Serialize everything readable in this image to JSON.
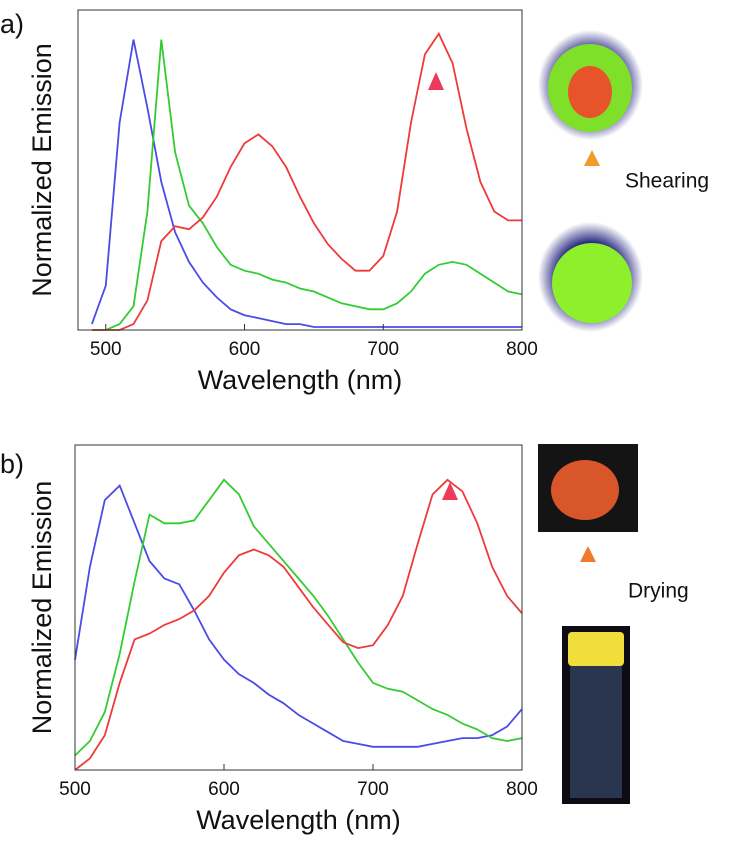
{
  "chart_data": [
    {
      "type": "line",
      "panel_label": "a)",
      "xlabel": "Wavelength (nm)",
      "ylabel": "Normalized Emission",
      "annotation": "Shearing",
      "xlim": [
        480,
        800
      ],
      "ylim": [
        0,
        1.08
      ],
      "xticks": [
        500,
        600,
        700,
        800
      ],
      "x": [
        490,
        500,
        510,
        520,
        530,
        540,
        550,
        560,
        570,
        580,
        590,
        600,
        610,
        620,
        630,
        640,
        650,
        660,
        670,
        680,
        690,
        700,
        710,
        720,
        730,
        740,
        750,
        760,
        770,
        780,
        790,
        800
      ],
      "series": [
        {
          "color": "#4b4be8",
          "values": [
            0.02,
            0.15,
            0.7,
            0.98,
            0.75,
            0.5,
            0.33,
            0.23,
            0.16,
            0.11,
            0.07,
            0.05,
            0.04,
            0.03,
            0.02,
            0.02,
            0.01,
            0.01,
            0.01,
            0.01,
            0.01,
            0.01,
            0.01,
            0.01,
            0.01,
            0.01,
            0.01,
            0.01,
            0.01,
            0.01,
            0.01,
            0.01
          ]
        },
        {
          "color": "#33cc33",
          "values": [
            0,
            0,
            0.02,
            0.08,
            0.4,
            0.98,
            0.6,
            0.42,
            0.36,
            0.28,
            0.22,
            0.2,
            0.19,
            0.17,
            0.16,
            0.14,
            0.13,
            0.11,
            0.09,
            0.08,
            0.07,
            0.07,
            0.09,
            0.13,
            0.19,
            0.22,
            0.23,
            0.22,
            0.19,
            0.16,
            0.13,
            0.12
          ]
        },
        {
          "color": "#ee3a3a",
          "values": [
            0,
            0,
            0,
            0.02,
            0.1,
            0.3,
            0.35,
            0.34,
            0.38,
            0.45,
            0.55,
            0.63,
            0.66,
            0.62,
            0.55,
            0.45,
            0.36,
            0.29,
            0.24,
            0.2,
            0.2,
            0.25,
            0.4,
            0.7,
            0.93,
            1.0,
            0.9,
            0.68,
            0.5,
            0.4,
            0.37,
            0.37
          ]
        }
      ]
    },
    {
      "type": "line",
      "panel_label": "b)",
      "xlabel": "Wavelength (nm)",
      "ylabel": "Normalized Emission",
      "annotation": "Drying",
      "xlim": [
        500,
        800
      ],
      "ylim": [
        0,
        1.12
      ],
      "xticks": [
        500,
        600,
        700,
        800
      ],
      "x": [
        500,
        510,
        520,
        530,
        540,
        550,
        560,
        570,
        580,
        590,
        600,
        610,
        620,
        630,
        640,
        650,
        660,
        670,
        680,
        690,
        700,
        710,
        720,
        730,
        740,
        750,
        760,
        770,
        780,
        790,
        800
      ],
      "series": [
        {
          "color": "#4b4be8",
          "values": [
            0.38,
            0.7,
            0.93,
            0.98,
            0.85,
            0.72,
            0.66,
            0.64,
            0.55,
            0.45,
            0.38,
            0.33,
            0.3,
            0.26,
            0.23,
            0.19,
            0.16,
            0.13,
            0.1,
            0.09,
            0.08,
            0.08,
            0.08,
            0.08,
            0.09,
            0.1,
            0.11,
            0.11,
            0.12,
            0.15,
            0.21
          ]
        },
        {
          "color": "#33cc33",
          "values": [
            0.05,
            0.1,
            0.2,
            0.4,
            0.65,
            0.88,
            0.85,
            0.85,
            0.86,
            0.93,
            1.0,
            0.95,
            0.84,
            0.78,
            0.72,
            0.66,
            0.6,
            0.53,
            0.45,
            0.37,
            0.3,
            0.28,
            0.27,
            0.24,
            0.21,
            0.19,
            0.16,
            0.14,
            0.11,
            0.1,
            0.11
          ]
        },
        {
          "color": "#ee3a3a",
          "values": [
            0,
            0.04,
            0.12,
            0.3,
            0.45,
            0.47,
            0.5,
            0.52,
            0.55,
            0.6,
            0.68,
            0.74,
            0.76,
            0.74,
            0.7,
            0.63,
            0.56,
            0.5,
            0.44,
            0.42,
            0.43,
            0.5,
            0.6,
            0.78,
            0.95,
            1.0,
            0.96,
            0.85,
            0.7,
            0.6,
            0.54
          ]
        }
      ]
    }
  ]
}
